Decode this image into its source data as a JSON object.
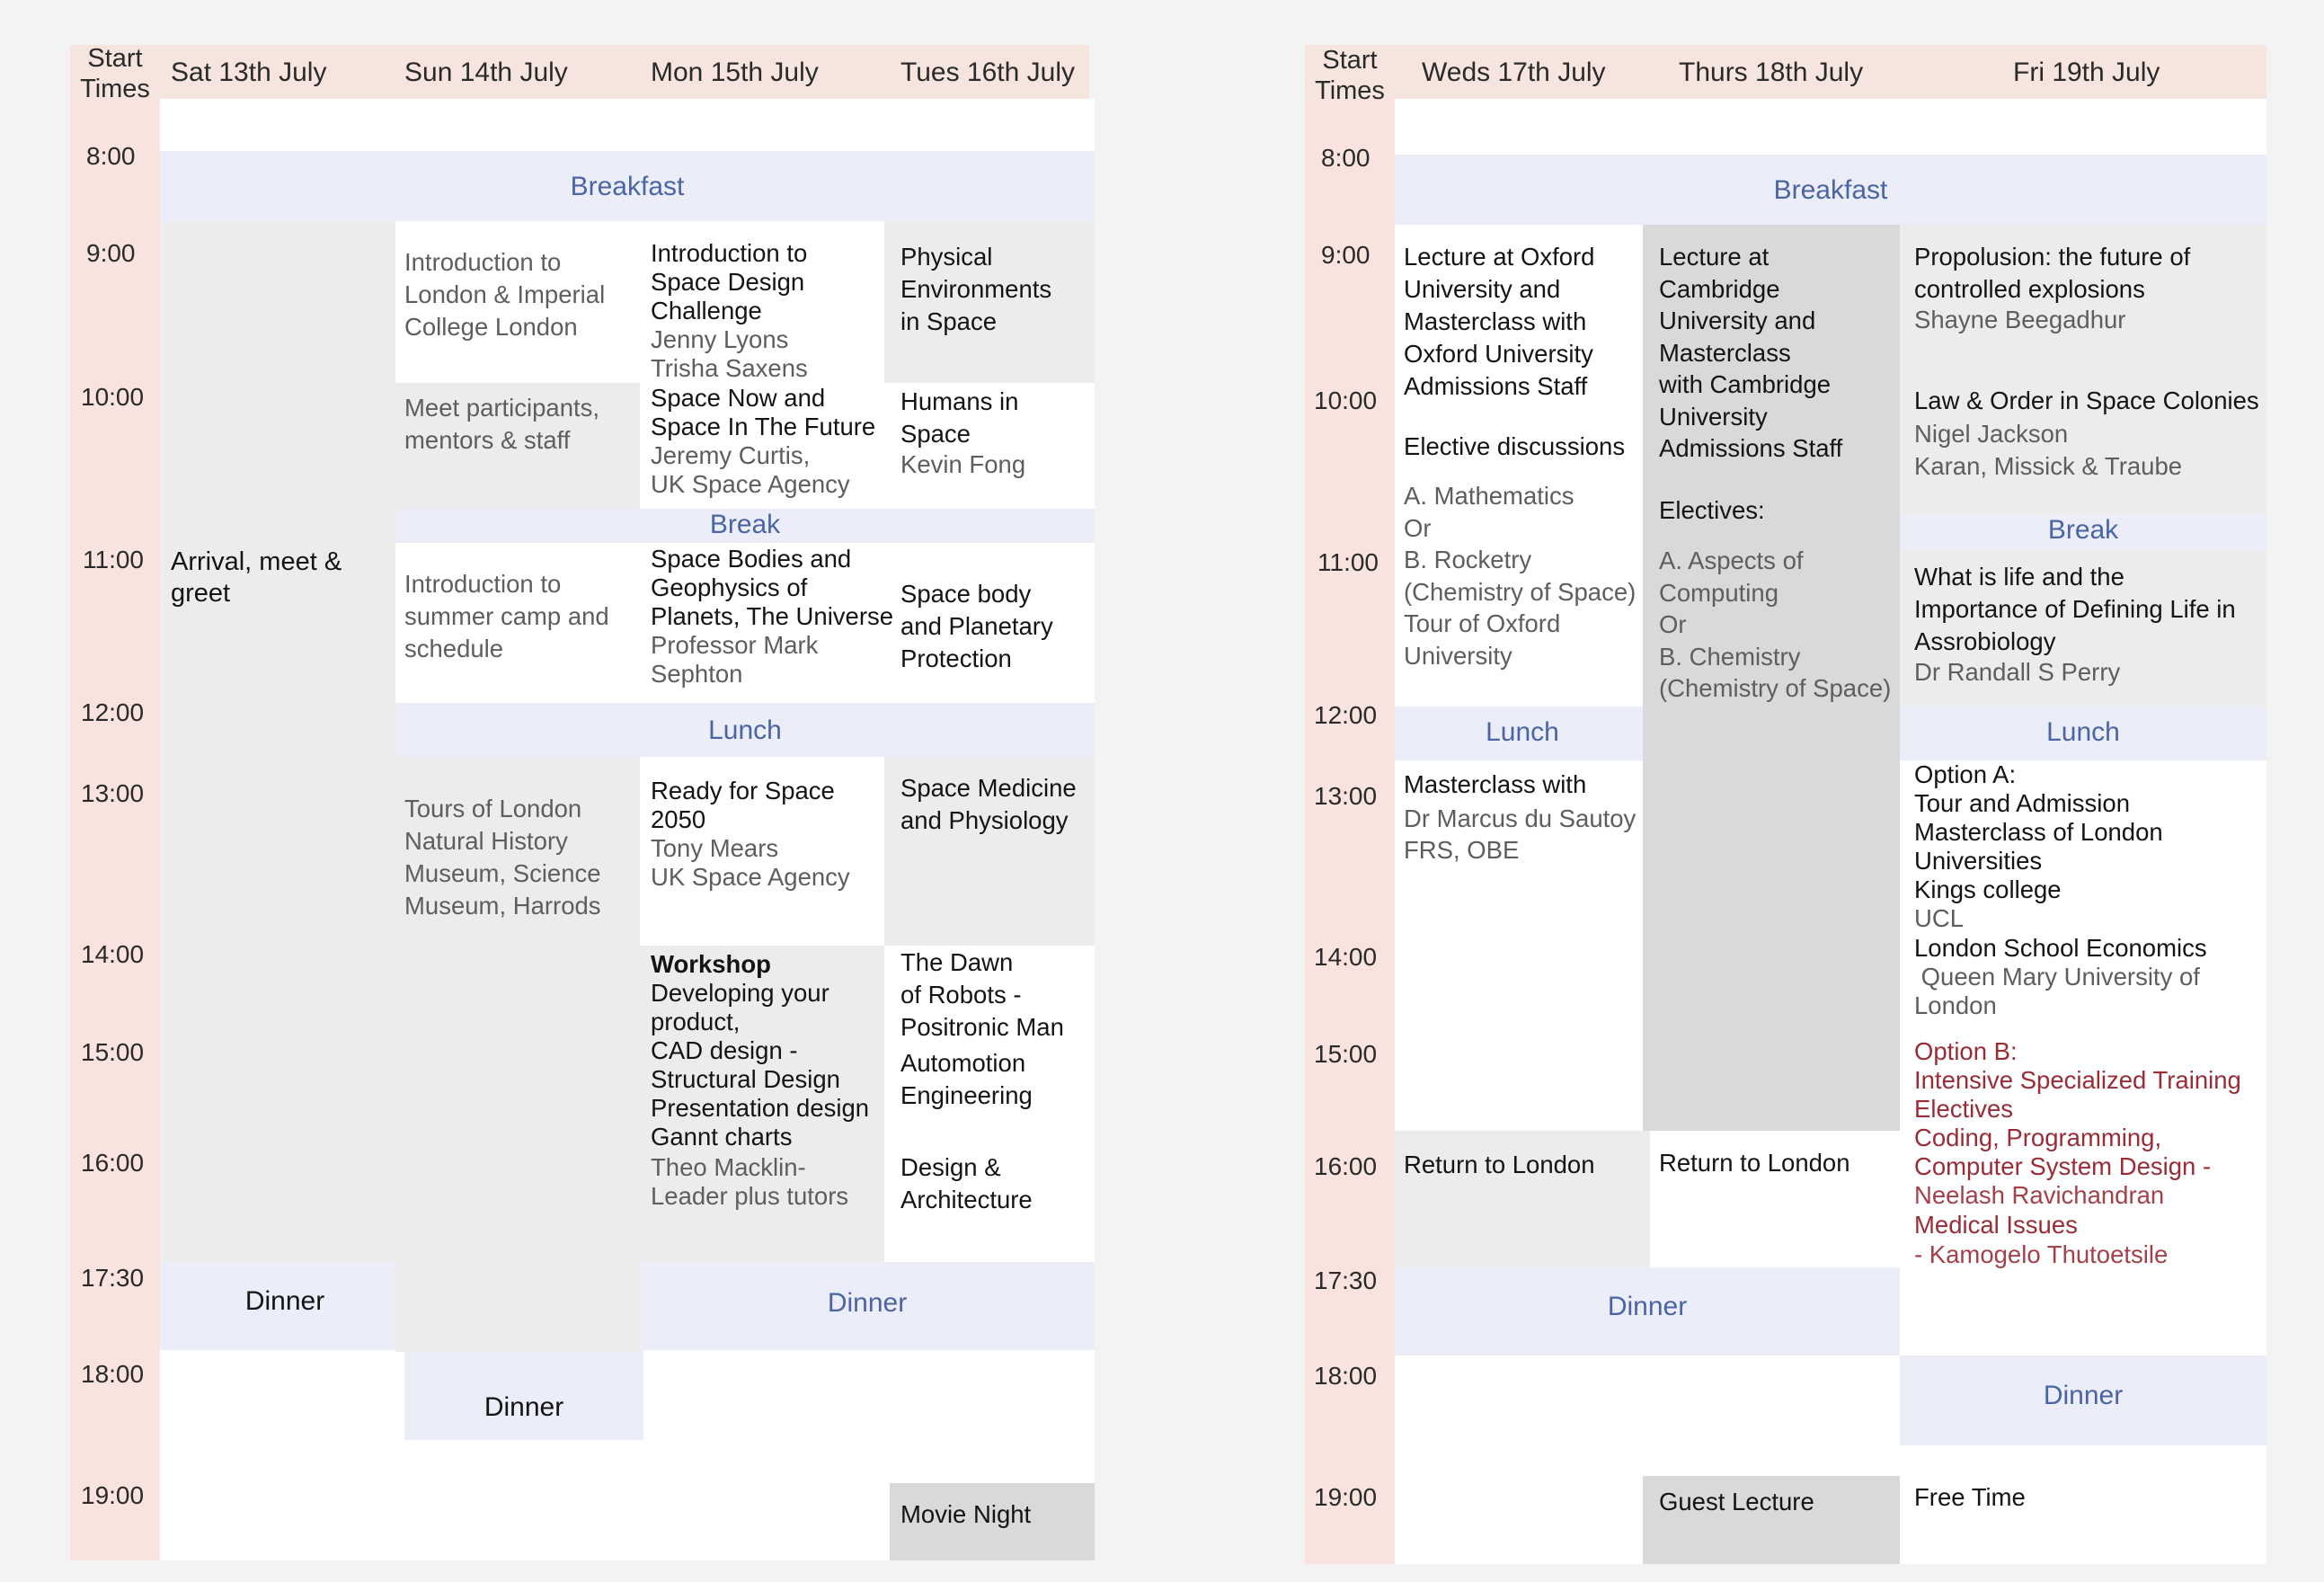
{
  "left": {
    "header": {
      "start_times": "Start\nTimes",
      "days": [
        "Sat 13th July",
        "Sun 14th July",
        "Mon 15th July",
        "Tues 16th July"
      ]
    },
    "times": [
      "8:00",
      "9:00",
      "10:00",
      "11:00",
      "12:00",
      "13:00",
      "14:00",
      "15:00",
      "16:00",
      "17:30",
      "18:00",
      "19:00"
    ],
    "breakfast": "Breakfast",
    "break": "Break",
    "lunch": "Lunch",
    "sat": {
      "arrival": "Arrival, meet &\ngreet",
      "dinner": "Dinner"
    },
    "sun": {
      "intro_london": "Introduction to\nLondon & Imperial\nCollege London",
      "meet": "Meet participants,\nmentors & staff",
      "intro_camp": "Introduction to\nsummer camp and\nschedule",
      "tours": "Tours of London\nNatural History\nMuseum, Science\nMuseum, Harrods",
      "dinner": "Dinner"
    },
    "mon": {
      "intro_title": "Introduction to\nSpace Design\nChallenge",
      "intro_people": "Jenny Lyons\nTrisha Saxens",
      "spacenow_title": "Space Now and\nSpace In The Future",
      "spacenow_people": "Jeremy Curtis,\nUK Space Agency",
      "bodies_title": "Space Bodies and\nGeophysics of\nPlanets, The Universe",
      "bodies_people": "Professor Mark\nSephton",
      "ready_title": "Ready for Space\n2050",
      "ready_people": "Tony Mears\nUK Space Agency",
      "workshop_heading": "Workshop",
      "workshop_items": "Developing your\nproduct,\nCAD design -\nStructural Design\nPresentation design\nGannt charts",
      "workshop_people": "Theo Macklin-\nLeader plus tutors",
      "dinner": "Dinner"
    },
    "tue": {
      "physical": "Physical\nEnvironments\nin Space",
      "humans_title": "Humans in\nSpace",
      "humans_people": "Kevin Fong",
      "spacebody": "Space body\nand Planetary\nProtection",
      "medicine": "Space Medicine\nand Physiology",
      "dawn": "The Dawn\nof Robots -\nPositronic Man",
      "automotion": "Automotion\nEngineering",
      "design": "Design &\nArchitecture",
      "movie": "Movie Night"
    }
  },
  "right": {
    "header": {
      "start_times": "Start\nTimes",
      "days": [
        "Weds 17th July",
        "Thurs 18th July",
        "Fri 19th July"
      ]
    },
    "times": [
      "8:00",
      "9:00",
      "10:00",
      "11:00",
      "12:00",
      "13:00",
      "14:00",
      "15:00",
      "16:00",
      "17:30",
      "18:00",
      "19:00"
    ],
    "breakfast": "Breakfast",
    "wed": {
      "oxford_lecture": "Lecture at Oxford\nUniversity and\nMasterclass with\nOxford University\nAdmissions Staff",
      "elective_heading": "Elective discussions",
      "elective_options": "A. Mathematics\nOr\nB. Rocketry\n(Chemistry of Space)\nTour of Oxford\nUniversity",
      "lunch": "Lunch",
      "masterclass_title": "Masterclass with",
      "masterclass_people": "Dr Marcus du Sautoy\nFRS, OBE",
      "return": "Return to London",
      "dinner": "Dinner"
    },
    "thu": {
      "cambridge_lecture": "Lecture at\nCambridge\nUniversity and\nMasterclass\nwith Cambridge\nUniversity\nAdmissions Staff",
      "electives_heading": "Electives:",
      "electives_options": "A. Aspects of\nComputing\nOr\nB. Chemistry\n(Chemistry of Space)",
      "return": "Return to London",
      "guest": "Guest Lecture"
    },
    "fri": {
      "propulsion_title": "Propolusion: the future of\ncontrolled explosions",
      "propulsion_people": "Shayne Beegadhur",
      "law_title": "Law & Order in Space Colonies",
      "law_people": "Nigel Jackson\nKaran, Missick & Traube",
      "break": "Break",
      "life_title": "What is life and the\nImportance of Defining Life in\nAssrobiology",
      "life_people": "Dr Randall S Perry",
      "lunch": "Lunch",
      "option_a_label": "Option A:",
      "option_a_tour": "Tour and Admission\nMasterclass of London\nUniversities",
      "kings": "Kings college",
      "ucl": "UCL",
      "lse": "London School Economics",
      "qmul": " Queen Mary University of\nLondon",
      "option_b_label": "Option B:",
      "option_b_title": "Intensive Specialized Training\nElectives",
      "coding": "Coding, Programming,\nComputer System Design -",
      "neelash": "Neelash Ravichandran",
      "medical": "Medical Issues",
      "kamogelo": "- Kamogelo Thutoetsile",
      "dinner": "Dinner",
      "free": "Free Time"
    }
  },
  "colors": {
    "header_band": "#f6e4df",
    "time_column": "#f8e3de",
    "meal_band": "#ebedf8",
    "light_grey_cell": "#ececec",
    "dark_grey_cell": "#d9d9d9",
    "white_cell": "#ffffff",
    "meal_text": "#4a64a4",
    "option_b_text": "#9b2c36"
  }
}
